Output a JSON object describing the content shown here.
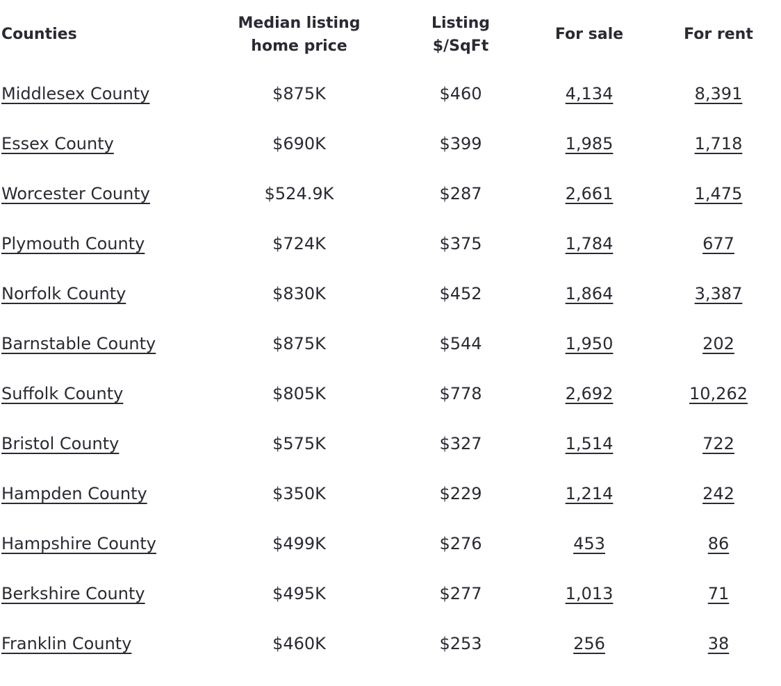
{
  "colors": {
    "text": "#2a2a33",
    "background": "#ffffff"
  },
  "table": {
    "columns": [
      {
        "label": "Counties"
      },
      {
        "label": "Median listing\nhome price"
      },
      {
        "label": "Listing\n$/SqFt"
      },
      {
        "label": "For sale"
      },
      {
        "label": "For rent"
      }
    ],
    "rows": [
      {
        "county": "Middlesex County",
        "median_price": "$875K",
        "price_sqft": "$460",
        "for_sale": "4,134",
        "for_rent": "8,391"
      },
      {
        "county": "Essex County",
        "median_price": "$690K",
        "price_sqft": "$399",
        "for_sale": "1,985",
        "for_rent": "1,718"
      },
      {
        "county": "Worcester County",
        "median_price": "$524.9K",
        "price_sqft": "$287",
        "for_sale": "2,661",
        "for_rent": "1,475"
      },
      {
        "county": "Plymouth County",
        "median_price": "$724K",
        "price_sqft": "$375",
        "for_sale": "1,784",
        "for_rent": "677"
      },
      {
        "county": "Norfolk County",
        "median_price": "$830K",
        "price_sqft": "$452",
        "for_sale": "1,864",
        "for_rent": "3,387"
      },
      {
        "county": "Barnstable County",
        "median_price": "$875K",
        "price_sqft": "$544",
        "for_sale": "1,950",
        "for_rent": "202"
      },
      {
        "county": "Suffolk County",
        "median_price": "$805K",
        "price_sqft": "$778",
        "for_sale": "2,692",
        "for_rent": "10,262"
      },
      {
        "county": "Bristol County",
        "median_price": "$575K",
        "price_sqft": "$327",
        "for_sale": "1,514",
        "for_rent": "722"
      },
      {
        "county": "Hampden County",
        "median_price": "$350K",
        "price_sqft": "$229",
        "for_sale": "1,214",
        "for_rent": "242"
      },
      {
        "county": "Hampshire County",
        "median_price": "$499K",
        "price_sqft": "$276",
        "for_sale": "453",
        "for_rent": "86"
      },
      {
        "county": "Berkshire County",
        "median_price": "$495K",
        "price_sqft": "$277",
        "for_sale": "1,013",
        "for_rent": "71"
      },
      {
        "county": "Franklin County",
        "median_price": "$460K",
        "price_sqft": "$253",
        "for_sale": "256",
        "for_rent": "38"
      }
    ]
  }
}
